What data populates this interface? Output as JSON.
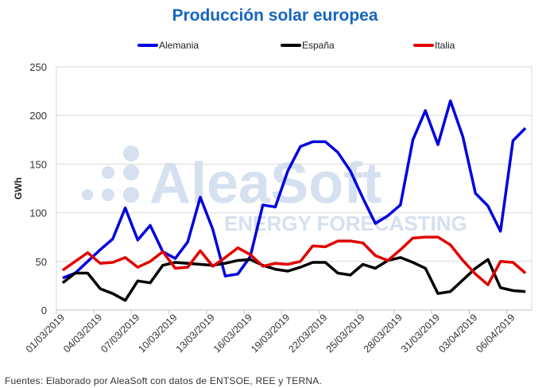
{
  "chart_data": {
    "type": "line",
    "title": "Producción solar europea",
    "ylabel": "GWh",
    "xlabel": "",
    "ylim": [
      0,
      250
    ],
    "yticks": [
      0,
      50,
      100,
      150,
      200,
      250
    ],
    "grid": true,
    "legend_position": "top",
    "x": [
      "01/03/2019",
      "02/03/2019",
      "03/03/2019",
      "04/03/2019",
      "05/03/2019",
      "06/03/2019",
      "07/03/2019",
      "08/03/2019",
      "09/03/2019",
      "10/03/2019",
      "11/03/2019",
      "12/03/2019",
      "13/03/2019",
      "14/03/2019",
      "15/03/2019",
      "16/03/2019",
      "17/03/2019",
      "18/03/2019",
      "19/03/2019",
      "20/03/2019",
      "21/03/2019",
      "22/03/2019",
      "23/03/2019",
      "24/03/2019",
      "25/03/2019",
      "26/03/2019",
      "27/03/2019",
      "28/03/2019",
      "29/03/2019",
      "30/03/2019",
      "31/03/2019",
      "01/04/2019",
      "02/04/2019",
      "03/04/2019",
      "04/04/2019",
      "05/04/2019",
      "06/04/2019",
      "07/04/2019"
    ],
    "tick_labels": [
      "01/03/2019",
      "04/03/2019",
      "07/03/2019",
      "10/03/2019",
      "13/03/2019",
      "16/03/2019",
      "19/03/2019",
      "22/03/2019",
      "25/03/2019",
      "28/03/2019",
      "31/03/2019",
      "03/04/2019",
      "06/04/2019"
    ],
    "series": [
      {
        "name": "Alemania",
        "color": "#0000e0",
        "values": [
          33,
          38,
          50,
          62,
          73,
          105,
          72,
          87,
          60,
          53,
          70,
          116,
          83,
          35,
          37,
          55,
          108,
          106,
          143,
          168,
          173,
          173,
          162,
          143,
          115,
          89,
          97,
          108,
          175,
          205,
          170,
          215,
          178,
          120,
          107,
          81,
          174,
          187
        ]
      },
      {
        "name": "España",
        "color": "#000000",
        "values": [
          28,
          38,
          38,
          22,
          17,
          10,
          30,
          28,
          46,
          49,
          48,
          47,
          46,
          48,
          51,
          52,
          46,
          42,
          40,
          44,
          49,
          49,
          38,
          36,
          47,
          43,
          51,
          54,
          49,
          43,
          17,
          19,
          31,
          43,
          52,
          23,
          20,
          19
        ]
      },
      {
        "name": "Italia",
        "color": "#e00000",
        "values": [
          41,
          50,
          59,
          48,
          49,
          54,
          44,
          50,
          60,
          43,
          44,
          61,
          45,
          54,
          64,
          57,
          45,
          48,
          47,
          50,
          66,
          65,
          71,
          71,
          69,
          56,
          51,
          62,
          74,
          75,
          75,
          67,
          51,
          37,
          26,
          50,
          49,
          38
        ]
      }
    ]
  },
  "watermark": {
    "brand": "AleaSoft",
    "tagline": "ENERGY FORECASTING",
    "color": "#d5e0f0"
  },
  "footer": "Fuentes: Elaborado por AleaSoft con datos de ENTSOE, REE y TERNA."
}
